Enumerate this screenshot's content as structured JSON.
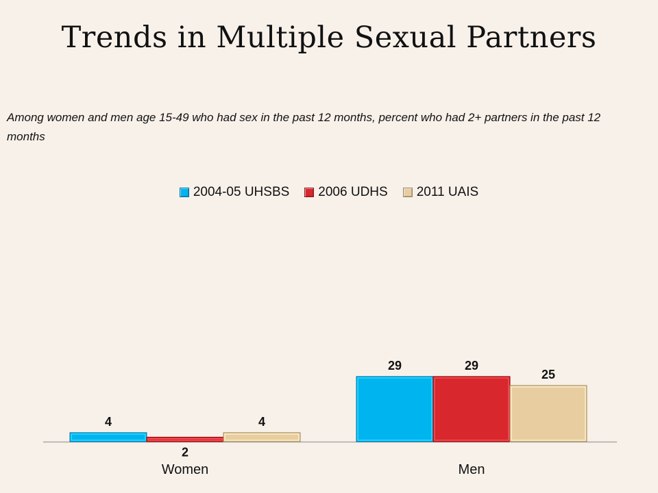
{
  "title": "Trends in Multiple Sexual Partners",
  "subtitle": "Among women and men age 15-49 who had sex in the past 12 months, percent who had 2+ partners in the past 12 months",
  "chart_data": {
    "type": "bar",
    "categories": [
      "Women",
      "Men"
    ],
    "series": [
      {
        "name": "2004-05 UHSBS",
        "values": [
          4,
          29
        ],
        "color": "#00b4f0"
      },
      {
        "name": "2006 UDHS",
        "values": [
          2,
          29
        ],
        "color": "#d9272e"
      },
      {
        "name": "2011 UAIS",
        "values": [
          4,
          25
        ],
        "color": "#e8cda0"
      }
    ],
    "legend_position": "top",
    "grid": false,
    "data_labels": true
  }
}
